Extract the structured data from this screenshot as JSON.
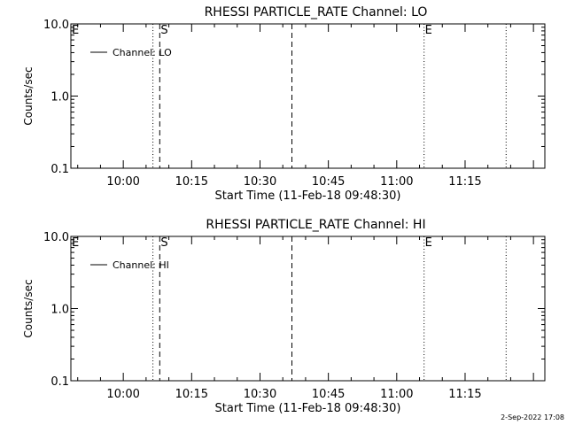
{
  "footer": {
    "timestamp": "2-Sep-2022 17:08"
  },
  "colors": {
    "background": "#ffffff",
    "foreground": "#000000"
  },
  "chart_data": [
    {
      "type": "line",
      "title": "RHESSI PARTICLE_RATE Channel: LO",
      "xlabel": "Start Time (11-Feb-18 09:48:30)",
      "ylabel": "Counts/sec",
      "y_scale": "log",
      "ylim": [
        0.1,
        10.0
      ],
      "y_ticks": [
        0.1,
        1.0,
        10.0
      ],
      "y_tick_labels": [
        "0.1",
        "1.0",
        "10.0"
      ],
      "x_ticks": [
        "10:00",
        "10:15",
        "10:30",
        "10:45",
        "11:00",
        "11:15"
      ],
      "legend": {
        "position": "top-left",
        "entries": [
          "Channel: LO"
        ]
      },
      "series": [
        {
          "name": "Channel: LO",
          "values": []
        }
      ],
      "markers": [
        {
          "label": "E",
          "time": "09:48:30",
          "style": "dotted-edge"
        },
        {
          "time": "10:06:30",
          "style": "dotted"
        },
        {
          "label": "S",
          "time": "10:08:00",
          "style": "dashed"
        },
        {
          "time": "10:37:00",
          "style": "dashed"
        },
        {
          "label": "E",
          "time": "11:06:00",
          "style": "dotted"
        },
        {
          "time": "11:24:00",
          "style": "dotted"
        }
      ]
    },
    {
      "type": "line",
      "title": "RHESSI PARTICLE_RATE Channel: HI",
      "xlabel": "Start Time (11-Feb-18 09:48:30)",
      "ylabel": "Counts/sec",
      "y_scale": "log",
      "ylim": [
        0.1,
        10.0
      ],
      "y_ticks": [
        0.1,
        1.0,
        10.0
      ],
      "y_tick_labels": [
        "0.1",
        "1.0",
        "10.0"
      ],
      "x_ticks": [
        "10:00",
        "10:15",
        "10:30",
        "10:45",
        "11:00",
        "11:15"
      ],
      "legend": {
        "position": "top-left",
        "entries": [
          "Channel: HI"
        ]
      },
      "series": [
        {
          "name": "Channel: HI",
          "values": []
        }
      ],
      "markers": [
        {
          "label": "E",
          "time": "09:48:30",
          "style": "dotted-edge"
        },
        {
          "time": "10:06:30",
          "style": "dotted"
        },
        {
          "label": "S",
          "time": "10:08:00",
          "style": "dashed"
        },
        {
          "time": "10:37:00",
          "style": "dashed"
        },
        {
          "label": "E",
          "time": "11:06:00",
          "style": "dotted"
        },
        {
          "time": "11:24:00",
          "style": "dotted"
        }
      ]
    }
  ]
}
